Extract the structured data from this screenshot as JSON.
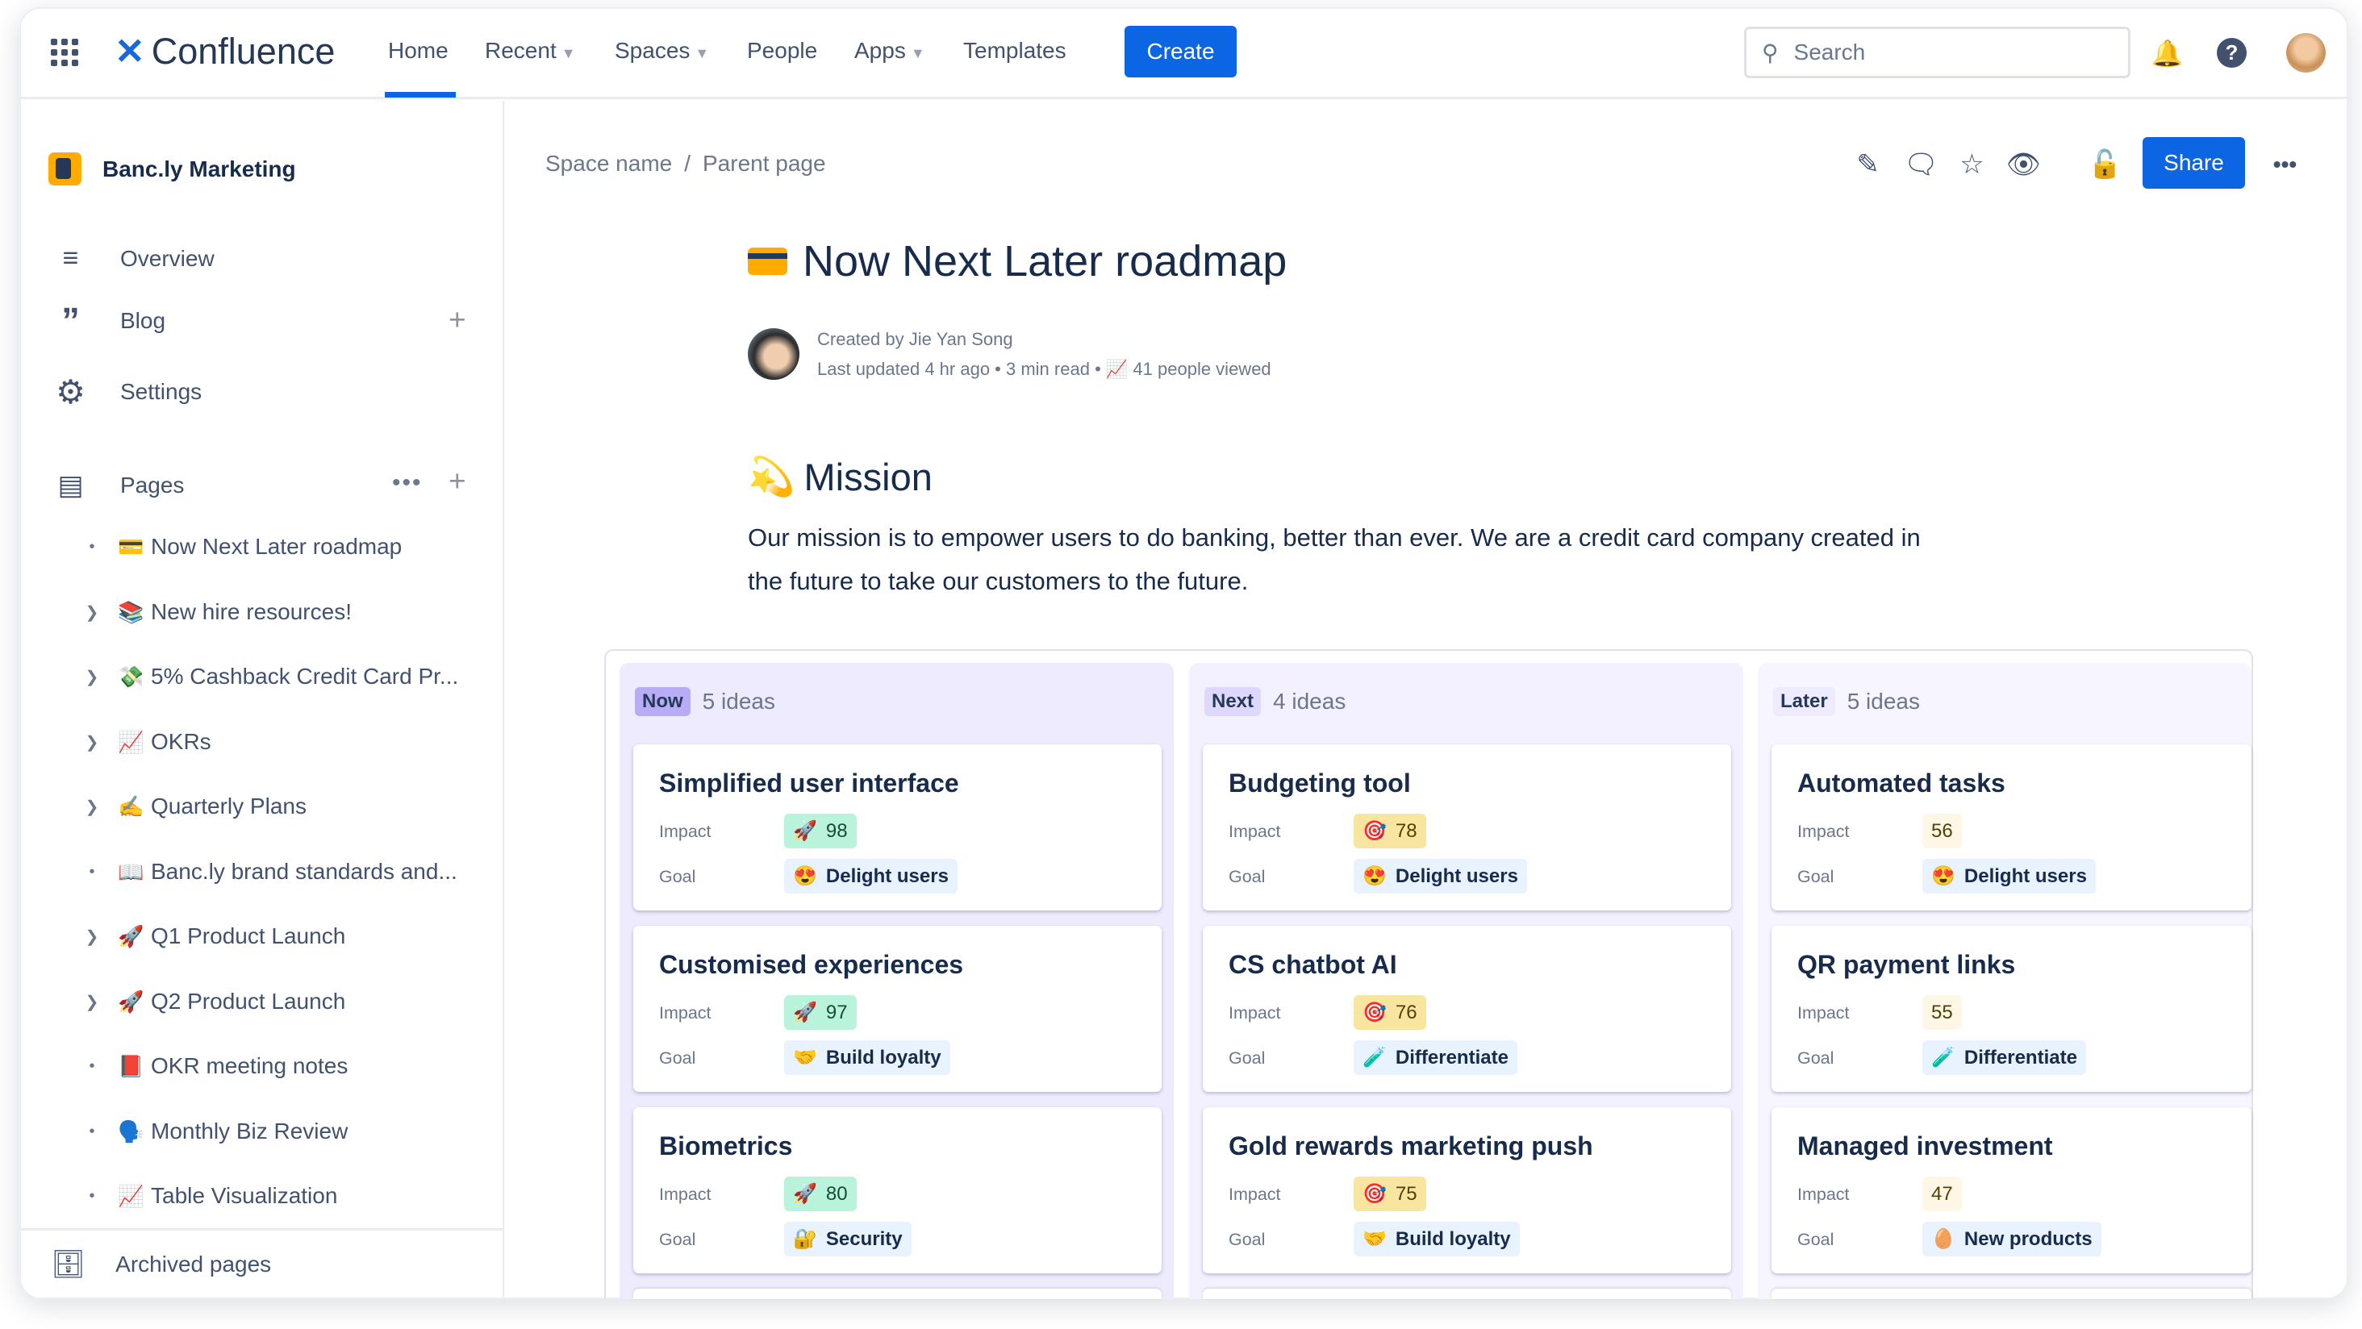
{
  "nav": {
    "product": "Confluence",
    "items": [
      {
        "label": "Home"
      },
      {
        "label": "Recent",
        "dropdown": true
      },
      {
        "label": "Spaces",
        "dropdown": true
      },
      {
        "label": "People"
      },
      {
        "label": "Apps",
        "dropdown": true
      },
      {
        "label": "Templates"
      }
    ],
    "active": "Home",
    "create_label": "Create",
    "search_placeholder": "Search"
  },
  "sidebar": {
    "space_name": "Banc.ly Marketing",
    "items": [
      {
        "label": "Overview",
        "icon": "overview-icon"
      },
      {
        "label": "Blog",
        "icon": "quote-icon"
      },
      {
        "label": "Settings",
        "icon": "gear-icon"
      }
    ],
    "pages_label": "Pages",
    "pages": [
      {
        "emoji": "💳",
        "label": "Now Next Later roadmap",
        "expandable": false
      },
      {
        "emoji": "📚",
        "label": "New hire resources!",
        "expandable": true
      },
      {
        "emoji": "💸",
        "label": "5% Cashback Credit Card Pr...",
        "expandable": true
      },
      {
        "emoji": "📈",
        "label": "OKRs",
        "expandable": true
      },
      {
        "emoji": "✍️",
        "label": "Quarterly Plans",
        "expandable": true
      },
      {
        "emoji": "📖",
        "label": "Banc.ly brand standards and...",
        "expandable": false
      },
      {
        "emoji": "🚀",
        "label": "Q1 Product Launch",
        "expandable": true
      },
      {
        "emoji": "🚀",
        "label": "Q2 Product Launch",
        "expandable": true
      },
      {
        "emoji": "📕",
        "label": "OKR meeting notes",
        "expandable": false
      },
      {
        "emoji": "🗣️",
        "label": "Monthly Biz Review",
        "expandable": false
      },
      {
        "emoji": "📈",
        "label": "Table Visualization",
        "expandable": false
      }
    ],
    "archived_label": "Archived pages"
  },
  "page": {
    "breadcrumb": [
      "Space name",
      "Parent page"
    ],
    "share_label": "Share",
    "title": "Now Next Later roadmap",
    "created_by": "Created by Jie Yan Song",
    "last_updated": "Last updated 4 hr ago",
    "read_time": "3 min read",
    "views": "41 people viewed",
    "mission_emoji": "💫",
    "mission_heading": "Mission",
    "mission_text": "Our mission is to empower users to do banking, better than ever. We are a credit card company created in the future to take our customers to the future."
  },
  "board": {
    "impact_label": "Impact",
    "goal_label": "Goal",
    "columns": [
      {
        "name": "Now",
        "count": "5 ideas",
        "color": "#eeebff",
        "lozenge": "#b8acf6",
        "ideas": [
          {
            "title": "Simplified user interface",
            "impact_emoji": "🚀",
            "impact": "98",
            "goal_emoji": "😍",
            "goal": "Delight users"
          },
          {
            "title": "Customised experiences",
            "impact_emoji": "🚀",
            "impact": "97",
            "goal_emoji": "🤝",
            "goal": "Build loyalty"
          },
          {
            "title": "Biometrics",
            "impact_emoji": "🚀",
            "impact": "80",
            "goal_emoji": "🔐",
            "goal": "Security"
          }
        ]
      },
      {
        "name": "Next",
        "count": "4 ideas",
        "color": "#f3f0ff",
        "lozenge": "#dfd8fd",
        "ideas": [
          {
            "title": "Budgeting tool",
            "impact_emoji": "🎯",
            "impact": "78",
            "goal_emoji": "😍",
            "goal": "Delight users"
          },
          {
            "title": "CS chatbot AI",
            "impact_emoji": "🎯",
            "impact": "76",
            "goal_emoji": "🧪",
            "goal": "Differentiate"
          },
          {
            "title": "Gold rewards marketing push",
            "impact_emoji": "🎯",
            "impact": "75",
            "goal_emoji": "🤝",
            "goal": "Build loyalty"
          }
        ]
      },
      {
        "name": "Later",
        "count": "5 ideas",
        "color": "#f7f5ff",
        "lozenge": "#eeebff",
        "ideas": [
          {
            "title": "Automated tasks",
            "impact_emoji": "",
            "impact": "56",
            "goal_emoji": "😍",
            "goal": "Delight users"
          },
          {
            "title": "QR payment links",
            "impact_emoji": "",
            "impact": "55",
            "goal_emoji": "🧪",
            "goal": "Differentiate"
          },
          {
            "title": "Managed investment",
            "impact_emoji": "",
            "impact": "47",
            "goal_emoji": "🥚",
            "goal": "New products"
          }
        ]
      }
    ]
  }
}
